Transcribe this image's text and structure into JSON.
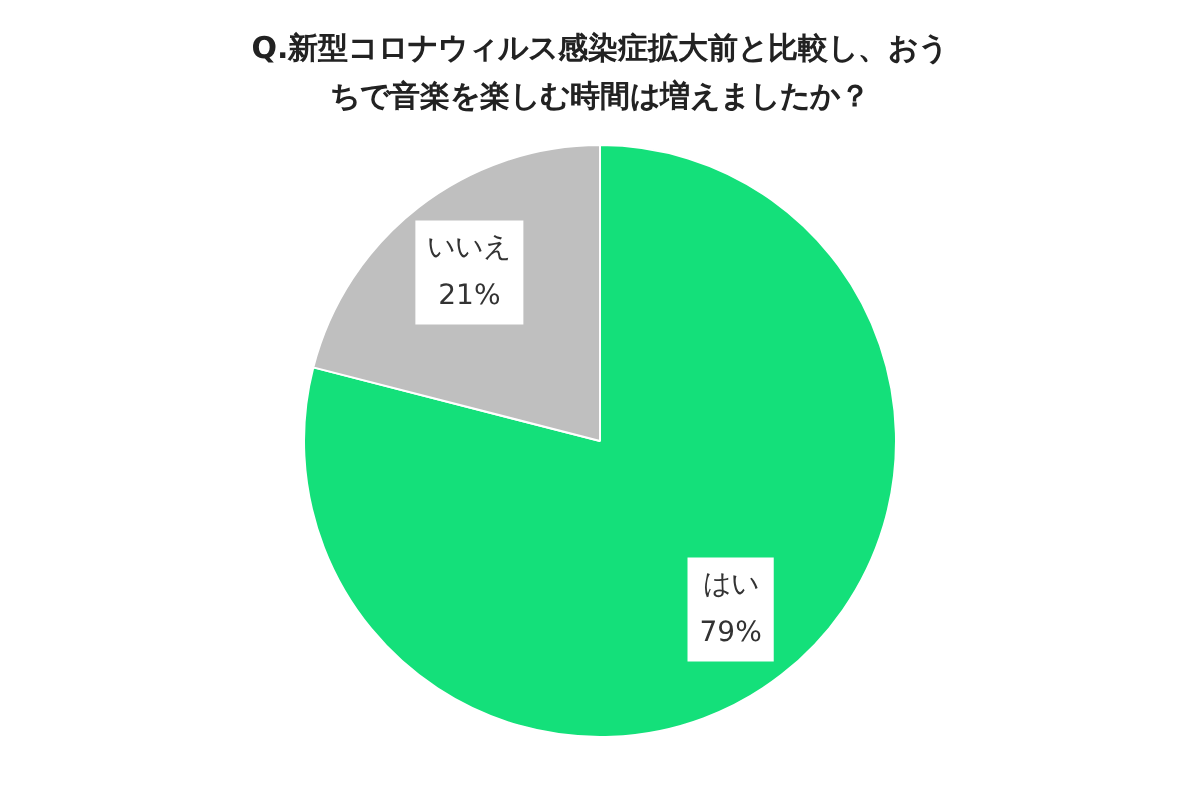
{
  "chart_data": {
    "type": "pie",
    "title": "Q.新型コロナウィルス感染症拡大前と比較し、おうちで音楽を楽しむ時間は増えましたか？",
    "categories": [
      "はい",
      "いいえ"
    ],
    "values": [
      79,
      21
    ],
    "value_labels": [
      "79%",
      "21%"
    ],
    "colors": [
      "#14e07a",
      "#bfbfbf"
    ],
    "legend": false
  }
}
